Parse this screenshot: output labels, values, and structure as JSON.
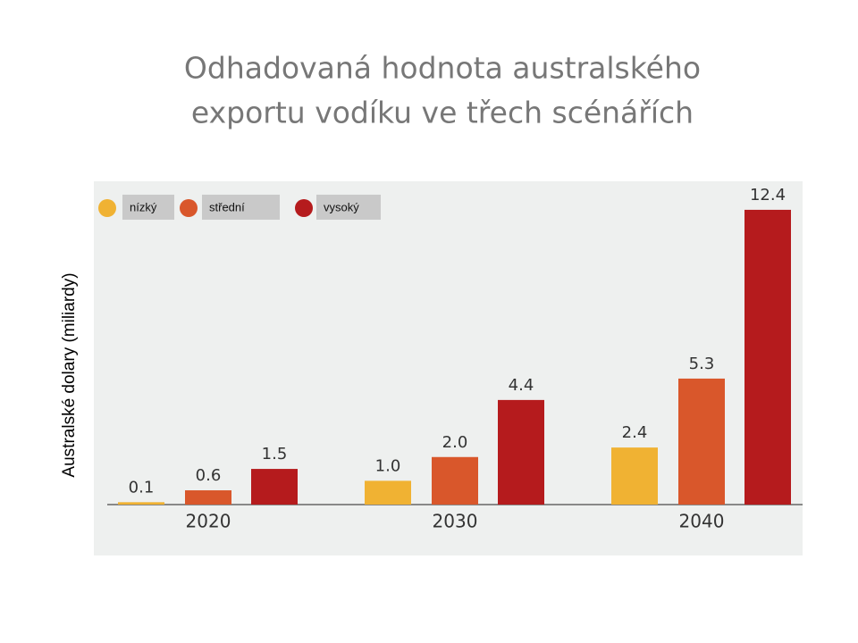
{
  "chart_data": {
    "type": "bar",
    "title_lines": [
      "Odhadovaná hodnota australského",
      "exportu vodíku ve třech scénářích"
    ],
    "y_label": "Australské dolary (miliardy)",
    "categories": [
      "2020",
      "2030",
      "2040"
    ],
    "series": [
      {
        "name": "nízký",
        "color": "#f0b233",
        "values": [
          0.1,
          1.0,
          2.4
        ],
        "value_labels": [
          "0.1",
          "1.0",
          "2.4"
        ]
      },
      {
        "name": "střední",
        "color": "#d9572b",
        "values": [
          0.6,
          2.0,
          5.3
        ],
        "value_labels": [
          "0.6",
          "2.0",
          "5.3"
        ]
      },
      {
        "name": "vysoký",
        "color": "#b51b1d",
        "values": [
          1.5,
          4.4,
          12.4
        ],
        "value_labels": [
          "1.5",
          "4.4",
          "12.4"
        ]
      }
    ],
    "ylim": [
      0,
      13.6
    ],
    "legend": "top-left"
  }
}
